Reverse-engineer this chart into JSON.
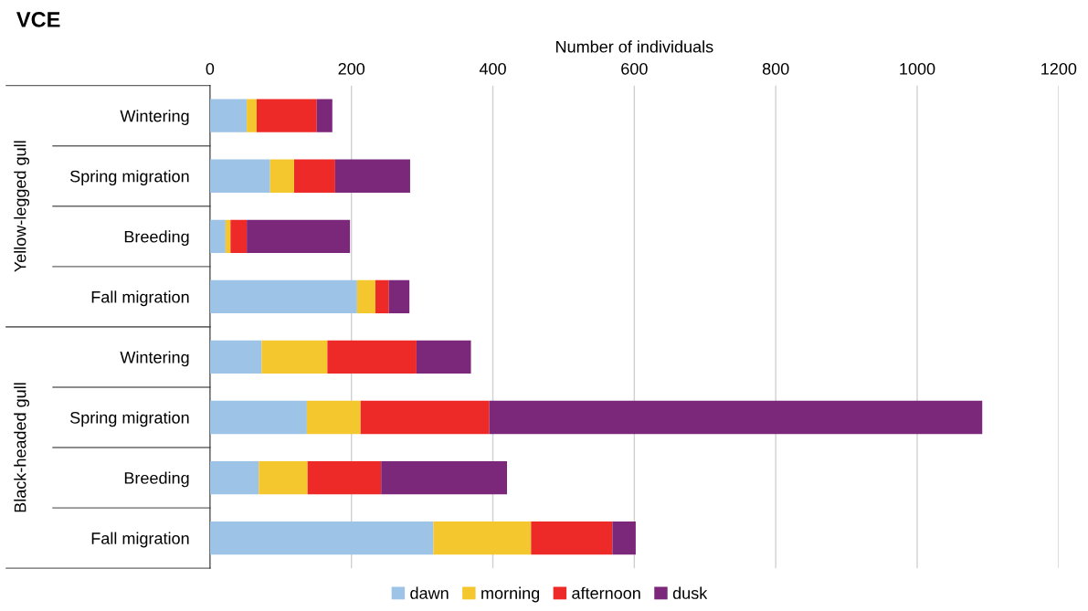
{
  "chart_data": {
    "type": "bar",
    "orientation": "horizontal",
    "stacked": true,
    "title": "VCE",
    "xlabel": "Number of individuals",
    "categories": [
      "Wintering",
      "Spring migration",
      "Breeding",
      "Fall migration",
      "Wintering",
      "Spring migration",
      "Breeding",
      "Fall migration"
    ],
    "annotations": [
      "Yellow-legged gull",
      "Black-headed gull"
    ],
    "series": [
      {
        "name": "dawn",
        "color": "#9dc3e6",
        "values": [
          52,
          85,
          22,
          208,
          73,
          137,
          69,
          316
        ]
      },
      {
        "name": "morning",
        "color": "#f4c72e",
        "values": [
          14,
          34,
          7,
          26,
          93,
          76,
          69,
          138
        ]
      },
      {
        "name": "afternoon",
        "color": "#ee2a28",
        "values": [
          85,
          58,
          23,
          19,
          126,
          182,
          104,
          115
        ]
      },
      {
        "name": "dusk",
        "color": "#7b287b",
        "values": [
          22,
          106,
          146,
          29,
          77,
          697,
          178,
          33
        ]
      }
    ],
    "xlim": [
      0,
      1200
    ],
    "xticks": [
      0,
      200,
      400,
      600,
      800,
      1000,
      1200
    ],
    "grid": "x",
    "legend": "bottom"
  }
}
